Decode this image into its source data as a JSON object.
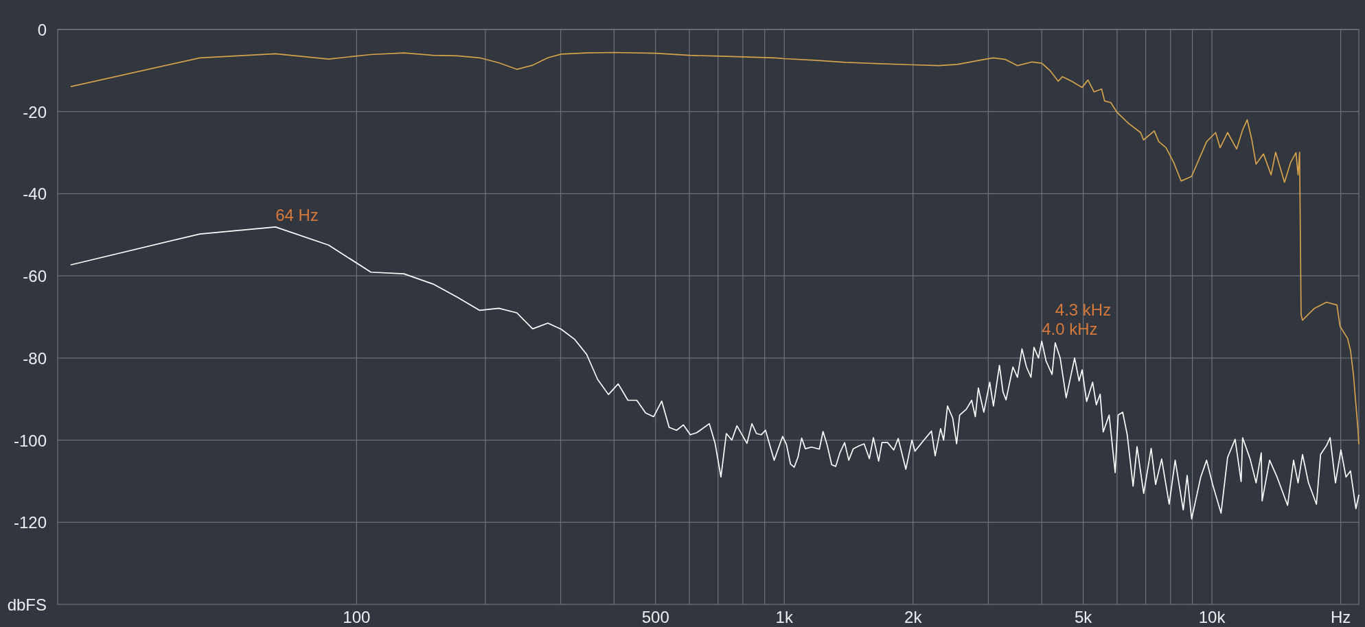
{
  "chart_data": {
    "type": "line",
    "log": "x",
    "grid": true,
    "xlabel": "Hz",
    "ylabel": "dbFS",
    "xlim": [
      20,
      22050
    ],
    "ylim": [
      -140,
      0
    ],
    "xticks": [
      100,
      {
        "value": 200,
        "label": null
      },
      {
        "value": 300,
        "label": null
      },
      {
        "value": 400,
        "label": null
      },
      500,
      {
        "value": 600,
        "label": null
      },
      {
        "value": 700,
        "label": null
      },
      {
        "value": 800,
        "label": null
      },
      {
        "value": 900,
        "label": null
      },
      {
        "value": 1000,
        "label": "1k"
      },
      {
        "value": 2000,
        "label": "2k"
      },
      {
        "value": 3000,
        "label": null
      },
      {
        "value": 4000,
        "label": null
      },
      {
        "value": 5000,
        "label": "5k"
      },
      {
        "value": 6000,
        "label": null
      },
      {
        "value": 7000,
        "label": null
      },
      {
        "value": 8000,
        "label": null
      },
      {
        "value": 9000,
        "label": null
      },
      {
        "value": 10000,
        "label": "10k"
      },
      {
        "value": 20000,
        "label": null
      }
    ],
    "yticks": [
      0,
      -20,
      -40,
      -60,
      -80,
      -100,
      -120
    ],
    "annotations": [
      {
        "text": "64 Hz",
        "x": 64.6,
        "y": -48.1
      },
      {
        "text": "4.3 kHz",
        "x": 4300,
        "y": -76.3
      },
      {
        "text": "4.0 kHz",
        "x": 4000,
        "y": -75.9
      }
    ],
    "series": [
      {
        "color": "#d6a24c",
        "x": [
          21.5,
          43,
          64.6,
          86,
          108,
          129,
          151,
          172,
          194,
          215,
          237,
          258,
          280,
          301,
          345,
          400,
          500,
          600,
          710,
          950,
          1000,
          1180,
          1390,
          1640,
          2000,
          2300,
          2540,
          2890,
          3080,
          3290,
          3510,
          3800,
          4000,
          4190,
          4370,
          4470,
          4700,
          4970,
          5130,
          5300,
          5520,
          5610,
          5800,
          5990,
          6390,
          6810,
          6920,
          7330,
          7510,
          7810,
          8140,
          8470,
          8960,
          9720,
          10200,
          10450,
          10880,
          11420,
          11800,
          12090,
          12380,
          12680,
          13200,
          13750,
          14090,
          14780,
          15270,
          15720,
          15900,
          16030,
          16160,
          16280,
          16820,
          17370,
          18530,
          19600,
          19930,
          20750,
          21080,
          21420,
          21590,
          21940,
          22050
        ],
        "values": [
          -13.9,
          -6.9,
          -5.9,
          -7.2,
          -6.1,
          -5.7,
          -6.3,
          -6.4,
          -6.9,
          -8.1,
          -9.7,
          -8.7,
          -6.9,
          -6.0,
          -5.7,
          -5.6,
          -5.8,
          -6.3,
          -6.5,
          -6.9,
          -7.1,
          -7.5,
          -8.0,
          -8.3,
          -8.6,
          -8.8,
          -8.5,
          -7.4,
          -6.9,
          -7.3,
          -8.8,
          -7.9,
          -8.2,
          -10.1,
          -12.6,
          -11.5,
          -12.6,
          -14.1,
          -12.3,
          -15.2,
          -14.5,
          -17.4,
          -17.8,
          -20.1,
          -22.9,
          -25.1,
          -26.9,
          -24.7,
          -27.3,
          -28.8,
          -32.4,
          -36.9,
          -35.8,
          -27.3,
          -25.1,
          -28.8,
          -25.1,
          -29.1,
          -24.4,
          -22.0,
          -26.6,
          -32.8,
          -30.3,
          -35.4,
          -29.9,
          -37.2,
          -32.4,
          -30.0,
          -35.4,
          -29.9,
          -69.5,
          -70.8,
          -69.3,
          -67.9,
          -66.4,
          -67.1,
          -72.3,
          -75.2,
          -78.1,
          -84.0,
          -88.4,
          -97.2,
          -100.9
        ]
      },
      {
        "color": "#ffffff",
        "x": [
          21.5,
          43,
          64.6,
          86,
          108,
          129,
          151,
          172,
          194,
          215,
          237,
          258,
          280,
          301,
          323,
          345,
          366,
          388,
          409,
          431,
          452,
          474,
          495,
          517,
          538,
          560,
          581,
          603,
          624,
          668,
          689,
          711,
          732,
          754,
          775,
          818,
          840,
          861,
          883,
          904,
          947,
          991,
          1012,
          1034,
          1055,
          1077,
          1098,
          1120,
          1159,
          1208,
          1232,
          1259,
          1291,
          1319,
          1350,
          1384,
          1415,
          1450,
          1495,
          1537,
          1581,
          1616,
          1662,
          1692,
          1744,
          1803,
          1847,
          1924,
          1988,
          2021,
          2121,
          2209,
          2253,
          2320,
          2358,
          2408,
          2476,
          2529,
          2571,
          2664,
          2743,
          2797,
          2843,
          2928,
          3023,
          3083,
          3185,
          3247,
          3300,
          3425,
          3509,
          3596,
          3684,
          3774,
          3836,
          3930,
          4000,
          4093,
          4228,
          4300,
          4417,
          4562,
          4774,
          4891,
          4971,
          5093,
          5260,
          5365,
          5478,
          5568,
          5749,
          5939,
          6035,
          6184,
          6337,
          6541,
          6680,
          6924,
          7209,
          7384,
          7627,
          7943,
          8204,
          8568,
          8750,
          8964,
          9413,
          9716,
          10037,
          10501,
          10879,
          11328,
          11702,
          11795,
          12282,
          12683,
          13040,
          13102,
          13641,
          14200,
          15027,
          15519,
          15899,
          16284,
          16815,
          17554,
          17949,
          18533,
          18891,
          19447,
          20020,
          20577,
          21083,
          21707,
          22050
        ],
        "values": [
          -57.3,
          -49.8,
          -48.1,
          -52.5,
          -59.1,
          -59.5,
          -62.0,
          -65.2,
          -68.4,
          -67.9,
          -69.0,
          -72.9,
          -71.5,
          -73.0,
          -75.4,
          -79.1,
          -85.2,
          -88.9,
          -86.3,
          -90.3,
          -90.3,
          -93.4,
          -94.3,
          -90.5,
          -96.9,
          -97.6,
          -96.3,
          -98.7,
          -98.2,
          -96.0,
          -100.8,
          -109.0,
          -98.4,
          -100.0,
          -96.5,
          -100.8,
          -96.0,
          -98.4,
          -98.7,
          -97.6,
          -104.9,
          -99.1,
          -101.1,
          -105.8,
          -106.6,
          -104.1,
          -99.5,
          -102.1,
          -101.7,
          -102.2,
          -97.9,
          -101.1,
          -106.0,
          -106.4,
          -103.0,
          -100.6,
          -104.9,
          -102.1,
          -101.4,
          -100.9,
          -104.5,
          -99.4,
          -105.1,
          -100.6,
          -100.6,
          -102.4,
          -99.6,
          -107.1,
          -100.0,
          -102.7,
          -100.0,
          -97.8,
          -103.8,
          -97.2,
          -100.0,
          -91.7,
          -94.6,
          -100.9,
          -93.9,
          -92.5,
          -90.3,
          -94.3,
          -87.3,
          -93.2,
          -85.9,
          -91.7,
          -81.8,
          -88.3,
          -90.2,
          -82.2,
          -84.7,
          -77.8,
          -82.2,
          -84.7,
          -77.4,
          -80.0,
          -75.9,
          -80.7,
          -84.0,
          -76.3,
          -80.0,
          -89.7,
          -80.0,
          -85.6,
          -82.9,
          -90.6,
          -85.9,
          -91.4,
          -88.8,
          -98.0,
          -93.9,
          -107.9,
          -93.9,
          -93.2,
          -98.7,
          -111.2,
          -101.6,
          -113.0,
          -102.0,
          -110.8,
          -104.6,
          -115.6,
          -104.9,
          -117.0,
          -108.6,
          -119.2,
          -109.0,
          -104.9,
          -110.8,
          -117.8,
          -104.2,
          -99.8,
          -110.1,
          -99.4,
          -104.6,
          -110.4,
          -103.1,
          -114.8,
          -104.9,
          -109.0,
          -115.9,
          -104.9,
          -110.4,
          -103.5,
          -110.4,
          -115.6,
          -103.5,
          -101.3,
          -99.4,
          -110.4,
          -102.4,
          -109.0,
          -107.5,
          -116.7,
          -113.4
        ]
      }
    ]
  }
}
